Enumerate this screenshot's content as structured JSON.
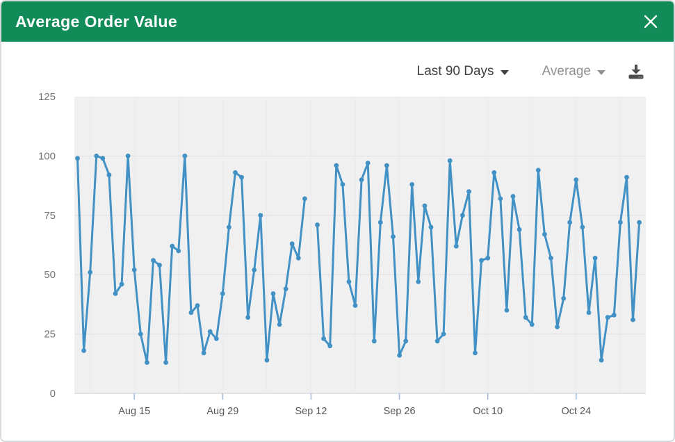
{
  "header": {
    "title": "Average Order Value"
  },
  "controls": {
    "range_label": "Last 90 Days",
    "metric_label": "Average"
  },
  "icons": {
    "close": "x-icon",
    "range_caret": "caret-down-icon",
    "metric_caret": "caret-down-icon",
    "download": "download-icon"
  },
  "colors": {
    "header_green": "#118c59",
    "line_blue": "#4191c5",
    "plot_bg": "#f0f0f1",
    "h_grid": "#e3e4e6",
    "v_grid": "#ebecee",
    "axis_edge": "#d9dadc",
    "tick_mark": "#a3bddb",
    "y_label": "#73767a",
    "x_label": "#54585c"
  },
  "chart_data": {
    "type": "line",
    "title": "Average Order Value",
    "xlabel": "",
    "ylabel": "",
    "ylim": [
      0,
      125
    ],
    "y_ticks": [
      0,
      25,
      50,
      75,
      100,
      125
    ],
    "x_tick_labels": [
      "Aug 15",
      "Aug 29",
      "Sep 12",
      "Sep 26",
      "Oct 10",
      "Oct 24"
    ],
    "x_tick_day_indices": [
      9,
      23,
      37,
      51,
      65,
      79
    ],
    "num_points": 90,
    "grid": true,
    "legend_position": "none",
    "note": "daily values, one point per day; null = missing day",
    "values": [
      99,
      18,
      51,
      100,
      99,
      92,
      42,
      46,
      100,
      52,
      25,
      13,
      56,
      54,
      13,
      62,
      60,
      100,
      34,
      37,
      17,
      26,
      23,
      42,
      70,
      93,
      91,
      32,
      52,
      75,
      14,
      42,
      29,
      44,
      63,
      57,
      82,
      null,
      71,
      23,
      20,
      96,
      88,
      47,
      37,
      90,
      97,
      22,
      72,
      96,
      66,
      16,
      22,
      88,
      47,
      79,
      70,
      22,
      25,
      98,
      62,
      75,
      85,
      17,
      56,
      57,
      93,
      82,
      35,
      83,
      69,
      32,
      29,
      94,
      67,
      57,
      28,
      40,
      72,
      90,
      70,
      34,
      57,
      14,
      32,
      33,
      72,
      91,
      31,
      72
    ]
  }
}
